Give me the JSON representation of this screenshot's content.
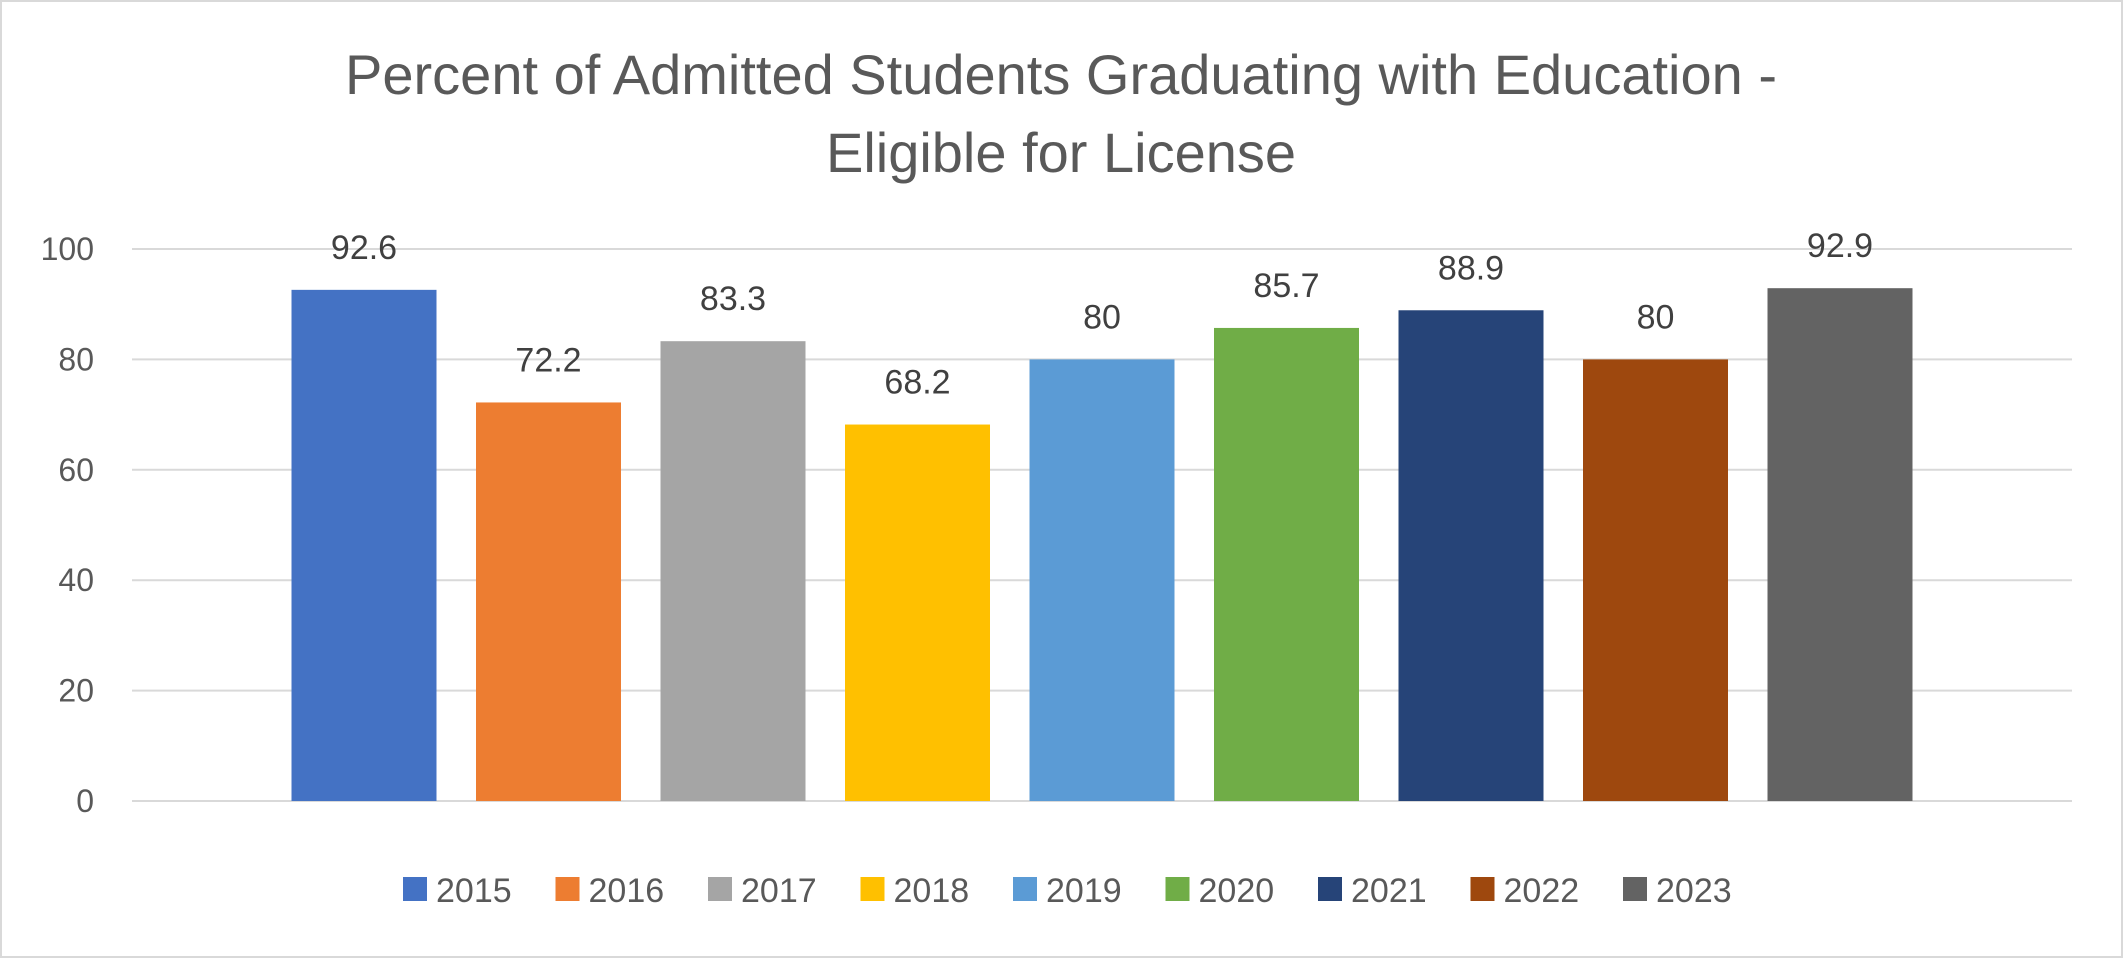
{
  "chart_data": {
    "type": "bar",
    "title_lines": [
      "Percent of Admitted Students Graduating with Education -",
      "Eligible for License"
    ],
    "xlabel": "",
    "ylabel": "",
    "ylim": [
      0,
      100
    ],
    "yticks": [
      0,
      20,
      40,
      60,
      80,
      100
    ],
    "grid": true,
    "legend_position": "bottom",
    "categories": [
      "2015",
      "2016",
      "2017",
      "2018",
      "2019",
      "2020",
      "2021",
      "2022",
      "2023"
    ],
    "values": [
      92.6,
      72.2,
      83.3,
      68.2,
      80,
      85.7,
      88.9,
      80,
      92.9
    ],
    "value_labels": [
      "92.6",
      "72.2",
      "83.3",
      "68.2",
      "80",
      "85.7",
      "88.9",
      "80",
      "92.9"
    ],
    "colors": [
      "#4472c4",
      "#ed7d31",
      "#a5a5a5",
      "#ffc000",
      "#5b9bd5",
      "#70ad47",
      "#264478",
      "#9e480e",
      "#636363"
    ]
  }
}
